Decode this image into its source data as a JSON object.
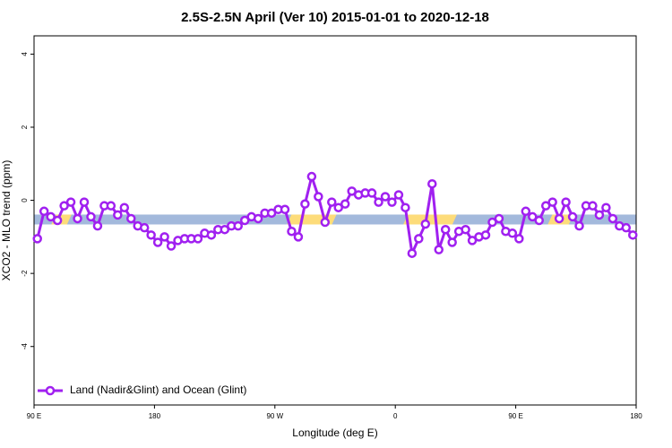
{
  "chart_data": {
    "type": "line",
    "title": "2.5S-2.5N April (Ver 10)   2015-01-01 to 2020-12-18",
    "xlabel": "Longitude (deg E)",
    "ylabel": "XCO2 - MLO trend (ppm)",
    "xlim": [
      90,
      540
    ],
    "ylim": [
      -5.6,
      4.5
    ],
    "xticks": [
      {
        "value": 90,
        "label": "90 E"
      },
      {
        "value": 180,
        "label": "180"
      },
      {
        "value": 270,
        "label": "90 W"
      },
      {
        "value": 360,
        "label": "0"
      },
      {
        "value": 450,
        "label": "90 E"
      },
      {
        "value": 540,
        "label": "180"
      }
    ],
    "yticks": [
      -4,
      -2,
      0,
      2,
      4
    ],
    "legend": "bottom-left",
    "band": {
      "range": [
        -0.66,
        -0.39
      ],
      "color": "#a3b9dc",
      "land_color": "#fddc7a",
      "land_segments": [
        [
          103,
          118
        ],
        [
          279,
          316
        ],
        [
          366,
          406
        ],
        [
          474,
          493
        ]
      ]
    },
    "x": [
      92.5,
      97.5,
      102.5,
      107.5,
      112.5,
      117.5,
      122.5,
      127.5,
      132.5,
      137.5,
      142.5,
      147.5,
      152.5,
      157.5,
      162.5,
      167.5,
      172.5,
      177.5,
      182.5,
      187.5,
      192.5,
      197.5,
      202.5,
      207.5,
      212.5,
      217.5,
      222.5,
      227.5,
      232.5,
      237.5,
      242.5,
      247.5,
      252.5,
      257.5,
      262.5,
      267.5,
      272.5,
      277.5,
      282.5,
      287.5,
      292.5,
      297.5,
      302.5,
      307.5,
      312.5,
      317.5,
      322.5,
      327.5,
      332.5,
      337.5,
      342.5,
      347.5,
      352.5,
      357.5,
      362.5,
      367.5,
      372.5,
      377.5,
      382.5,
      387.5,
      392.5,
      397.5,
      402.5,
      407.5,
      412.5,
      417.5,
      422.5,
      427.5,
      432.5,
      437.5,
      442.5,
      447.5,
      452.5,
      457.5,
      462.5,
      467.5,
      472.5,
      477.5,
      482.5,
      487.5,
      492.5,
      497.5,
      502.5,
      507.5,
      512.5,
      517.5,
      522.5,
      527.5,
      532.5,
      537.5
    ],
    "series": [
      {
        "name": "Land (Nadir&Glint) and Ocean (Glint)",
        "color": "#a020f0",
        "values": [
          -1.05,
          -0.3,
          -0.45,
          -0.55,
          -0.15,
          -0.05,
          -0.5,
          -0.05,
          -0.45,
          -0.7,
          -0.15,
          -0.15,
          -0.4,
          -0.2,
          -0.5,
          -0.7,
          -0.75,
          -0.95,
          -1.15,
          -1.0,
          -1.25,
          -1.1,
          -1.05,
          -1.05,
          -1.05,
          -0.9,
          -0.95,
          -0.8,
          -0.8,
          -0.7,
          -0.7,
          -0.55,
          -0.45,
          -0.5,
          -0.35,
          -0.35,
          -0.25,
          -0.25,
          -0.85,
          -1.0,
          -0.1,
          0.65,
          0.1,
          -0.6,
          -0.05,
          -0.2,
          -0.1,
          0.25,
          0.15,
          0.2,
          0.2,
          -0.05,
          0.1,
          -0.05,
          0.15,
          -0.2,
          -1.45,
          -1.05,
          -0.65,
          0.45,
          -1.35,
          -0.8,
          -1.15,
          -0.85,
          -0.8,
          -1.1,
          -1.0,
          -0.95,
          -0.6,
          -0.5,
          -0.85,
          -0.9,
          -1.05,
          -0.3,
          -0.45,
          -0.55,
          -0.15,
          -0.05,
          -0.5,
          -0.05,
          -0.45,
          -0.7,
          -0.15,
          -0.15,
          -0.4,
          -0.2,
          -0.5,
          -0.7,
          -0.75,
          -0.95
        ]
      }
    ]
  }
}
